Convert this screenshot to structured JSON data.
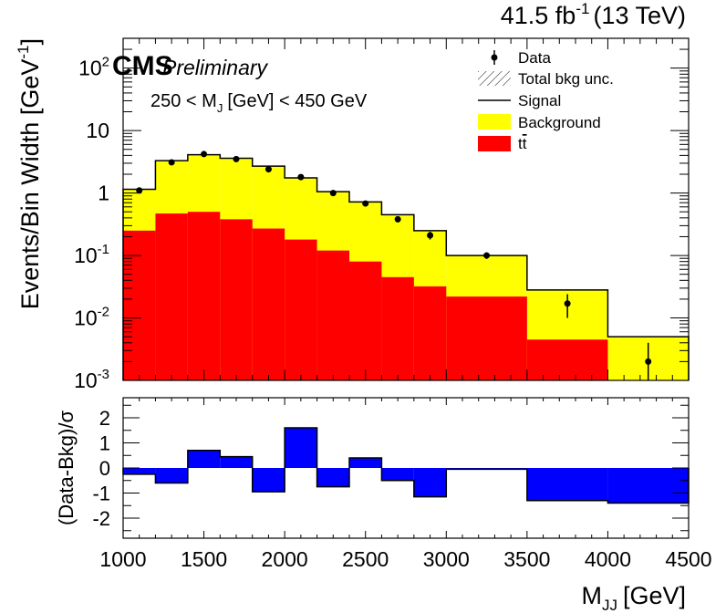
{
  "chart_data": {
    "type": "bar",
    "header": {
      "lumi": "41.5 fb",
      "lumi_sup": "-1",
      "energy": "(13 TeV)",
      "cms": "CMS",
      "preliminary": "Preliminary",
      "selection_main": "250 < M",
      "selection_sub": "J",
      "selection_rest": "[GeV] < 450 GeV"
    },
    "xlabel_main": "M",
    "xlabel_sub": "JJ",
    "xlabel_rest": "[GeV]",
    "ylabel_top": "Events/Bin Width [GeV",
    "ylabel_top_sup": "-1",
    "ylabel_bottom": "(Data-Bkg)/σ",
    "xlim": [
      1000,
      4500
    ],
    "top_ylim": [
      0.001,
      300
    ],
    "top_yscale": "log",
    "bottom_ylim": [
      -2.8,
      2.8
    ],
    "x_ticks": [
      "1000",
      "1500",
      "2000",
      "2500",
      "3000",
      "3500",
      "4000",
      "4500"
    ],
    "top_y_ticks": [
      {
        "value": 0.001,
        "base": "10",
        "exp": "-3"
      },
      {
        "value": 0.01,
        "base": "10",
        "exp": "-2"
      },
      {
        "value": 0.1,
        "base": "10",
        "exp": "-1"
      },
      {
        "value": 1,
        "base": "1",
        "exp": ""
      },
      {
        "value": 10,
        "base": "10",
        "exp": ""
      },
      {
        "value": 100,
        "base": "10",
        "exp": "2"
      }
    ],
    "bottom_y_ticks": [
      "-2",
      "-1",
      "0",
      "1",
      "2"
    ],
    "bin_edges": [
      1000,
      1200,
      1400,
      1600,
      1800,
      2000,
      2200,
      2400,
      2600,
      2800,
      3000,
      3500,
      4000,
      4500
    ],
    "series": [
      {
        "name": "Background",
        "color": "#ffff00",
        "values": [
          1.15,
          3.3,
          4.1,
          3.6,
          2.7,
          1.75,
          1.05,
          0.72,
          0.45,
          0.25,
          0.1,
          0.028,
          0.005
        ]
      },
      {
        "name": "tt̄",
        "color": "#ff0000",
        "values": [
          0.25,
          0.47,
          0.5,
          0.38,
          0.27,
          0.18,
          0.12,
          0.08,
          0.045,
          0.032,
          0.022,
          0.0045,
          0.0005
        ]
      }
    ],
    "data_points": {
      "name": "Data",
      "x": [
        1100,
        1300,
        1500,
        1700,
        1900,
        2100,
        2300,
        2500,
        2700,
        2900,
        3250,
        3750,
        4250
      ],
      "y": [
        1.1,
        3.1,
        4.2,
        3.5,
        2.4,
        1.8,
        1.0,
        0.68,
        0.38,
        0.21,
        0.1,
        0.017,
        0.002
      ],
      "err_low": [
        0.08,
        0.15,
        0.18,
        0.16,
        0.13,
        0.1,
        0.08,
        0.06,
        0.04,
        0.03,
        0.012,
        0.007,
        0.0012
      ],
      "err_high": [
        0.08,
        0.15,
        0.18,
        0.16,
        0.13,
        0.1,
        0.08,
        0.06,
        0.04,
        0.03,
        0.012,
        0.007,
        0.002
      ]
    },
    "pulls": [
      -0.25,
      -0.6,
      0.7,
      0.45,
      -0.95,
      1.6,
      -0.75,
      0.4,
      -0.5,
      -1.15,
      -0.05,
      -1.3,
      -1.4
    ],
    "pull_color": "#0000ff",
    "legend": {
      "placement": "top-right",
      "entries": [
        {
          "label": "Data",
          "kind": "marker"
        },
        {
          "label": "Total bkg unc.",
          "kind": "hatch"
        },
        {
          "label": "Signal",
          "kind": "line"
        },
        {
          "label": "Background",
          "kind": "fill",
          "color": "#ffff00"
        },
        {
          "label_main": "t",
          "label_bar": "t",
          "kind": "fill",
          "color": "#ff0000"
        }
      ]
    }
  }
}
